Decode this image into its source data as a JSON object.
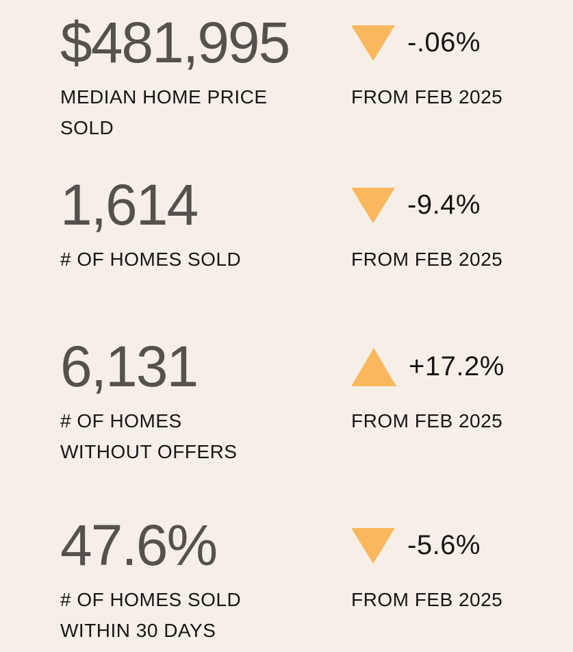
{
  "colors": {
    "background": "#f5efe8",
    "accent_triangle": "#f9b85e",
    "value_text": "#55514d",
    "label_text": "#171514"
  },
  "stats": [
    {
      "value": "$481,995",
      "label_lines": [
        "MEDIAN HOME PRICE",
        "SOLD"
      ],
      "direction": "down",
      "change": "-.06%",
      "period": "FROM FEB 2025"
    },
    {
      "value": "1,614",
      "label_lines": [
        "# OF HOMES SOLD"
      ],
      "direction": "down",
      "change": "-9.4%",
      "period": "FROM FEB 2025"
    },
    {
      "value": "6,131",
      "label_lines": [
        "# OF HOMES",
        "WITHOUT OFFERS"
      ],
      "direction": "up",
      "change": "+17.2%",
      "period": "FROM FEB 2025"
    },
    {
      "value": "47.6%",
      "label_lines": [
        "# OF HOMES SOLD",
        "WITHIN 30 DAYS"
      ],
      "direction": "down",
      "change": "-5.6%",
      "period": "FROM FEB 2025"
    }
  ]
}
